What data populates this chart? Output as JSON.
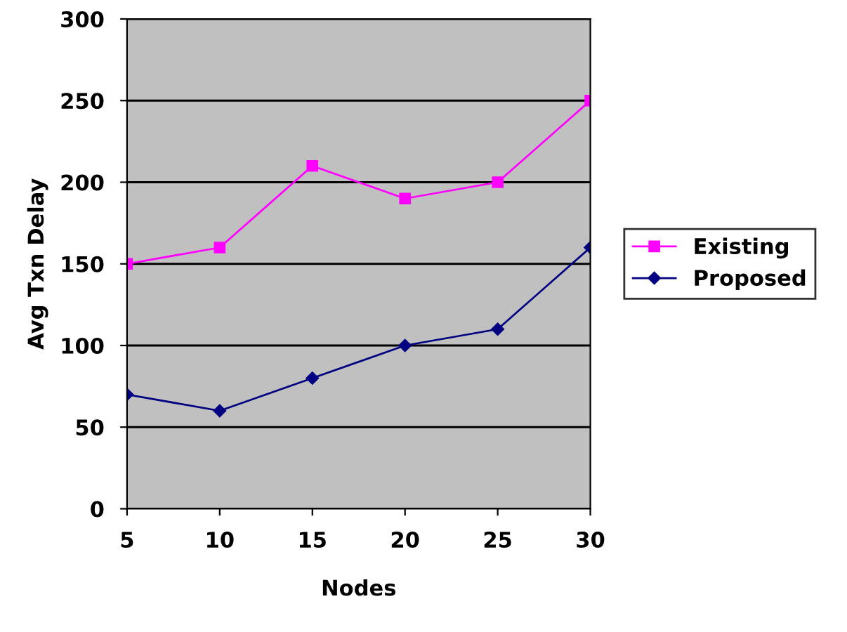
{
  "chart_data": {
    "type": "line",
    "xlabel": "Nodes",
    "ylabel": "Avg Txn Delay",
    "categories": [
      "5",
      "10",
      "15",
      "20",
      "25",
      "30"
    ],
    "series": [
      {
        "name": "Existing",
        "color": "#ff00ff",
        "marker": "square",
        "values": [
          150,
          160,
          210,
          190,
          200,
          250
        ]
      },
      {
        "name": "Proposed",
        "color": "#000080",
        "marker": "diamond",
        "values": [
          70,
          60,
          80,
          100,
          110,
          160
        ]
      }
    ],
    "ylim": [
      0,
      300
    ],
    "yticks": [
      0,
      50,
      100,
      150,
      200,
      250,
      300
    ],
    "grid": "y",
    "legend": "right"
  }
}
